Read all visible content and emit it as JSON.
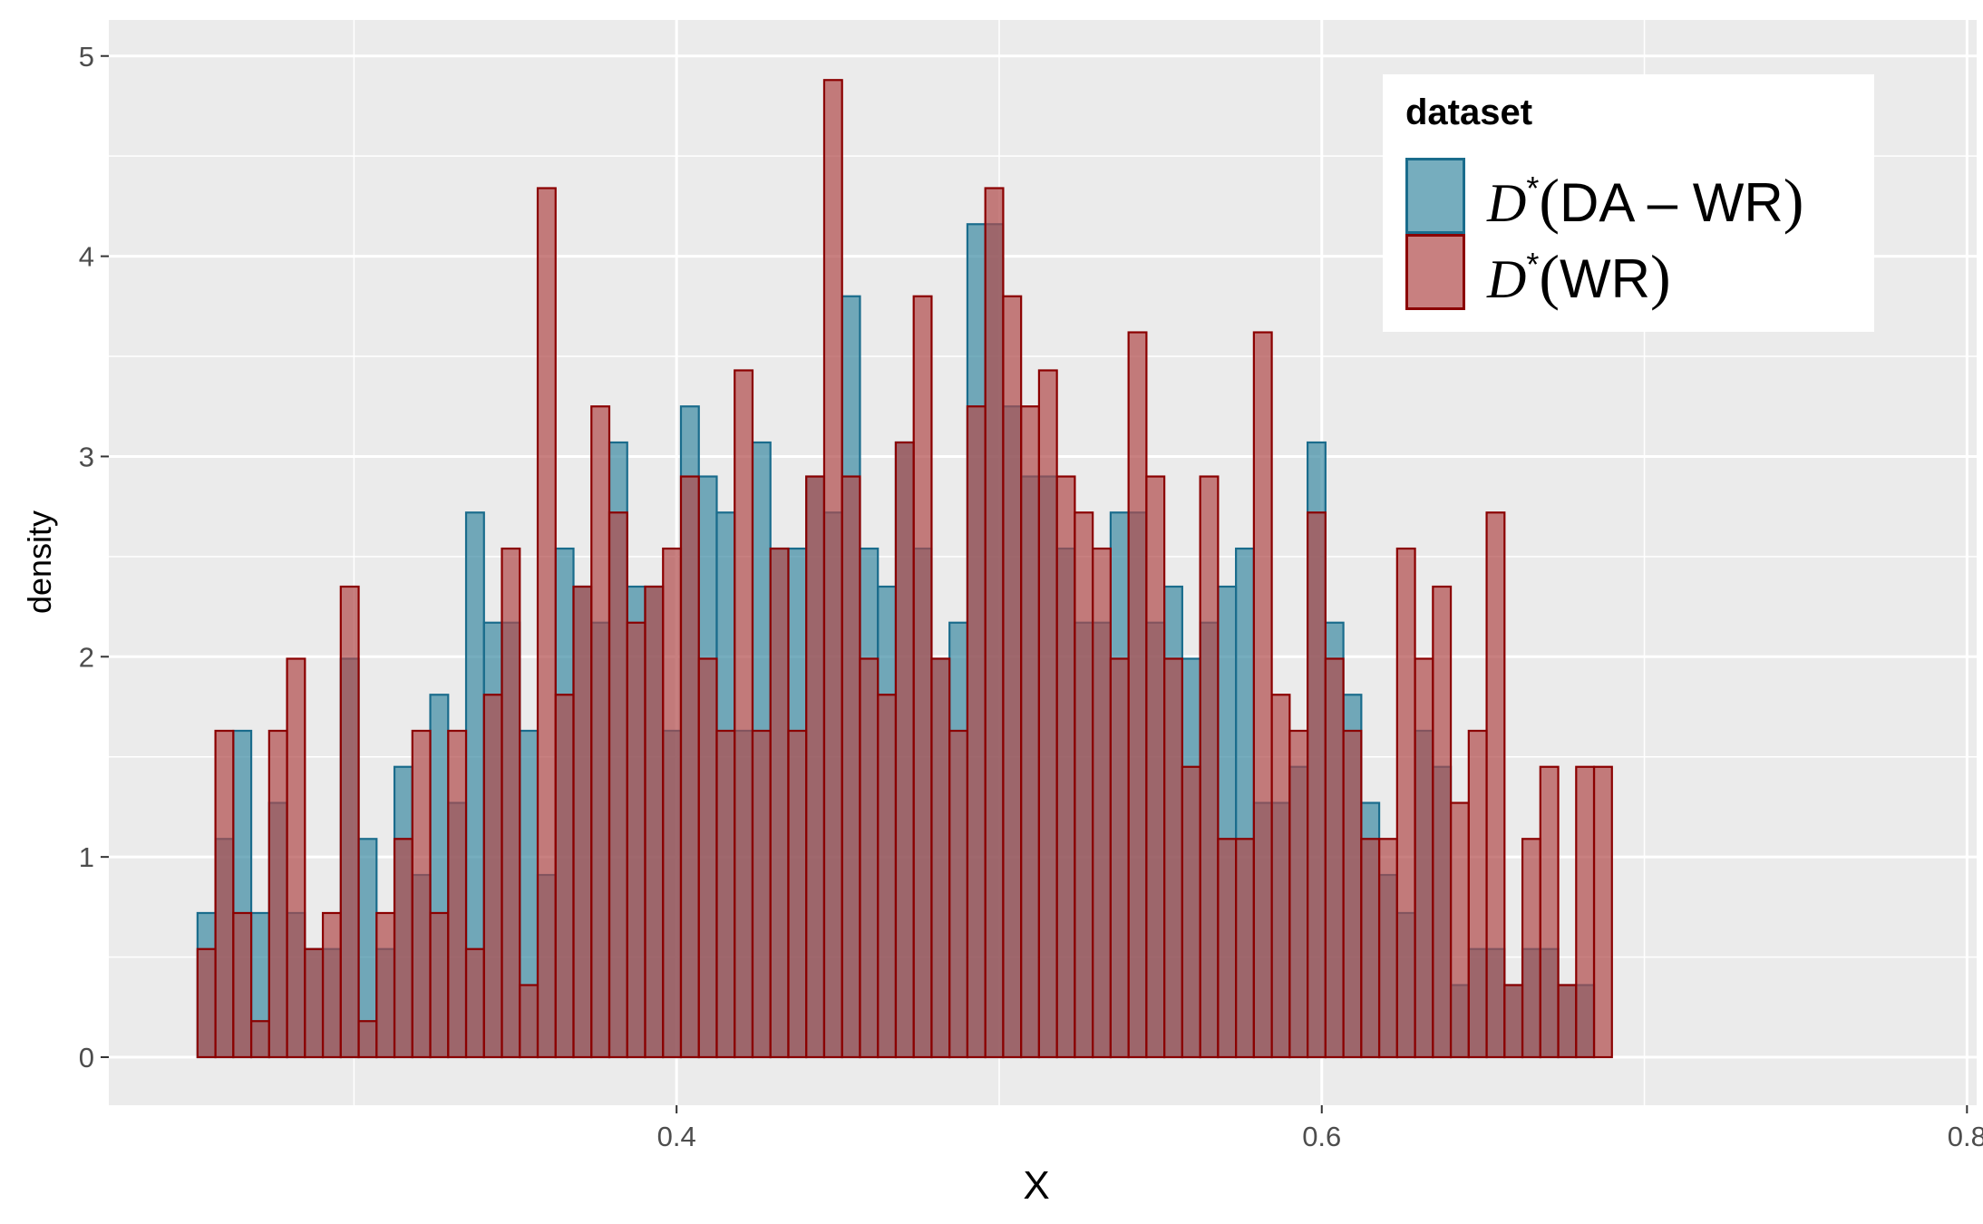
{
  "chart_data": {
    "type": "histogram",
    "xlabel": "X",
    "ylabel": "density",
    "xlim": [
      0.224,
      0.803
    ],
    "ylim": [
      -0.24,
      5.18
    ],
    "x_ticks": [
      0.4,
      0.6,
      0.8
    ],
    "x_tick_labels": [
      "0.4",
      "0.6",
      "0.8"
    ],
    "y_ticks": [
      0,
      1,
      2,
      3,
      4,
      5
    ],
    "y_tick_labels": [
      "0",
      "1",
      "2",
      "3",
      "4",
      "5"
    ],
    "grid": true,
    "bin_start": 0.2515,
    "bin_width": 0.00555,
    "legend": {
      "title": "dataset",
      "position": "top-right"
    },
    "series": [
      {
        "name": "D*(DA − WR)",
        "label_symbol": "D",
        "label_sup": "*",
        "label_text": "DA – WR",
        "fill": "#3c8aa3",
        "stroke": "#1a6c8c",
        "values": [
          0.72,
          1.09,
          1.63,
          0.72,
          1.27,
          0.72,
          0.54,
          0.54,
          1.99,
          1.09,
          0.54,
          1.45,
          0.91,
          1.81,
          1.27,
          2.72,
          2.17,
          2.17,
          1.63,
          0.91,
          2.54,
          2.35,
          2.17,
          3.07,
          2.35,
          2.35,
          1.63,
          3.25,
          2.9,
          2.72,
          1.63,
          3.07,
          2.54,
          2.54,
          2.9,
          2.72,
          3.8,
          2.54,
          2.35,
          3.07,
          2.54,
          1.99,
          2.17,
          4.16,
          4.16,
          3.25,
          2.9,
          2.9,
          2.54,
          2.17,
          2.17,
          2.72,
          2.72,
          2.17,
          2.35,
          1.99,
          2.17,
          2.35,
          2.54,
          1.27,
          1.27,
          1.45,
          3.07,
          2.17,
          1.81,
          1.27,
          0.91,
          0.72,
          1.63,
          1.45,
          0.36,
          0.54,
          0.54,
          0.36,
          0.54,
          0.54,
          0.36,
          0.36
        ]
      },
      {
        "name": "D*(WR)",
        "label_symbol": "D",
        "label_sup": "*",
        "label_text": "WR",
        "fill": "#b04a4a",
        "stroke": "#8b0000",
        "values": [
          0.54,
          1.63,
          0.72,
          0.18,
          1.63,
          1.99,
          0.54,
          0.72,
          2.35,
          0.18,
          0.72,
          1.09,
          1.63,
          0.72,
          1.63,
          0.54,
          1.81,
          2.54,
          0.36,
          4.34,
          1.81,
          2.35,
          3.25,
          2.72,
          2.17,
          2.35,
          2.54,
          2.9,
          1.99,
          1.63,
          3.43,
          1.63,
          2.54,
          1.63,
          2.9,
          4.88,
          2.9,
          1.99,
          1.81,
          3.07,
          3.8,
          1.99,
          1.63,
          3.25,
          4.34,
          3.8,
          3.25,
          3.43,
          2.9,
          2.72,
          2.54,
          1.99,
          3.62,
          2.9,
          1.99,
          1.45,
          2.9,
          1.09,
          1.09,
          3.62,
          1.81,
          1.63,
          2.72,
          1.99,
          1.63,
          1.09,
          1.09,
          2.54,
          1.99,
          2.35,
          1.27,
          1.63,
          2.72,
          0.36,
          1.09,
          1.45,
          0.36,
          1.45,
          1.45
        ]
      }
    ]
  }
}
